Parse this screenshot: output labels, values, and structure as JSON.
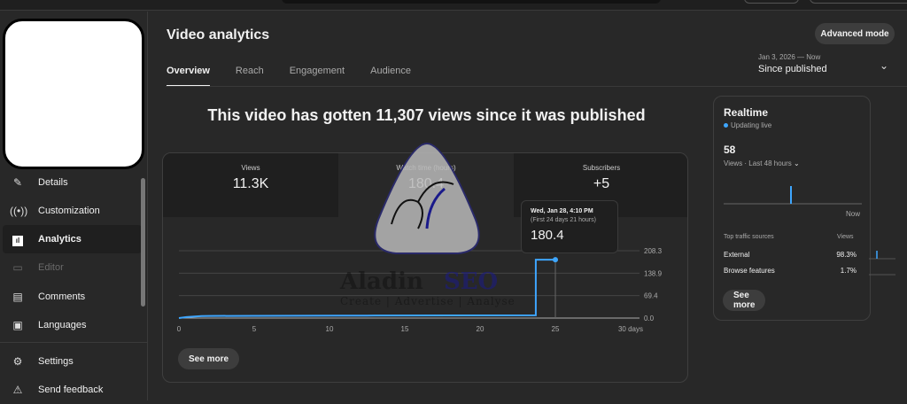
{
  "sidebar": {
    "items": [
      {
        "label": "Details",
        "icon": "pencil-icon"
      },
      {
        "label": "Customization",
        "icon": "broadcast-icon"
      },
      {
        "label": "Analytics",
        "icon": "analytics-icon",
        "active": true
      },
      {
        "label": "Editor",
        "icon": "editor-icon",
        "disabled": true
      },
      {
        "label": "Comments",
        "icon": "comment-icon"
      },
      {
        "label": "Languages",
        "icon": "subtitles-icon"
      }
    ],
    "bottom": [
      {
        "label": "Settings",
        "icon": "gear-icon"
      },
      {
        "label": "Send feedback",
        "icon": "feedback-icon"
      }
    ]
  },
  "header": {
    "title": "Video analytics",
    "advanced_mode": "Advanced mode",
    "tabs": [
      "Overview",
      "Reach",
      "Engagement",
      "Audience"
    ],
    "date_range": {
      "range": "Jan 3, 2026 — Now",
      "label": "Since published"
    }
  },
  "headline": "This video has gotten 11,307 views since it was published",
  "metrics": [
    {
      "label": "Views",
      "value": "11.3K"
    },
    {
      "label": "Watch time (hours)",
      "value": "180.4",
      "selected": true
    },
    {
      "label": "Subscribers",
      "value": "+5"
    }
  ],
  "tooltip": {
    "date": "Wed, Jan 28, 4:10 PM",
    "sub": "(First 24 days 21 hours)",
    "value": "180.4"
  },
  "see_more": "See more",
  "watermark": {
    "text": "Aladin SEO",
    "tagline": "Create | Advertise | Analyse"
  },
  "chart_data": {
    "type": "line",
    "xlim": [
      0,
      30
    ],
    "ylim": [
      0,
      208.3
    ],
    "x_ticks": [
      "0",
      "5",
      "10",
      "15",
      "20",
      "25",
      "30 days"
    ],
    "y_ticks": [
      "208.3",
      "138.9",
      "69.4",
      "0.0"
    ],
    "color": "#3ea6ff",
    "x": [
      0,
      0.5,
      1.5,
      2,
      5,
      12.5,
      13,
      23.7,
      23.7,
      25
    ],
    "y": [
      0,
      3,
      6,
      6.5,
      7,
      7.5,
      8,
      8.5,
      180.4,
      180.4
    ]
  },
  "realtime": {
    "title": "Realtime",
    "status": "Updating live",
    "count": "58",
    "metric": "Views · Last 48 hours",
    "now_label": "Now",
    "traffic_header": "Top traffic sources",
    "views_header": "Views",
    "sources": [
      {
        "name": "External",
        "pct": "98.3%"
      },
      {
        "name": "Browse features",
        "pct": "1.7%"
      }
    ],
    "see_more": "See more"
  }
}
